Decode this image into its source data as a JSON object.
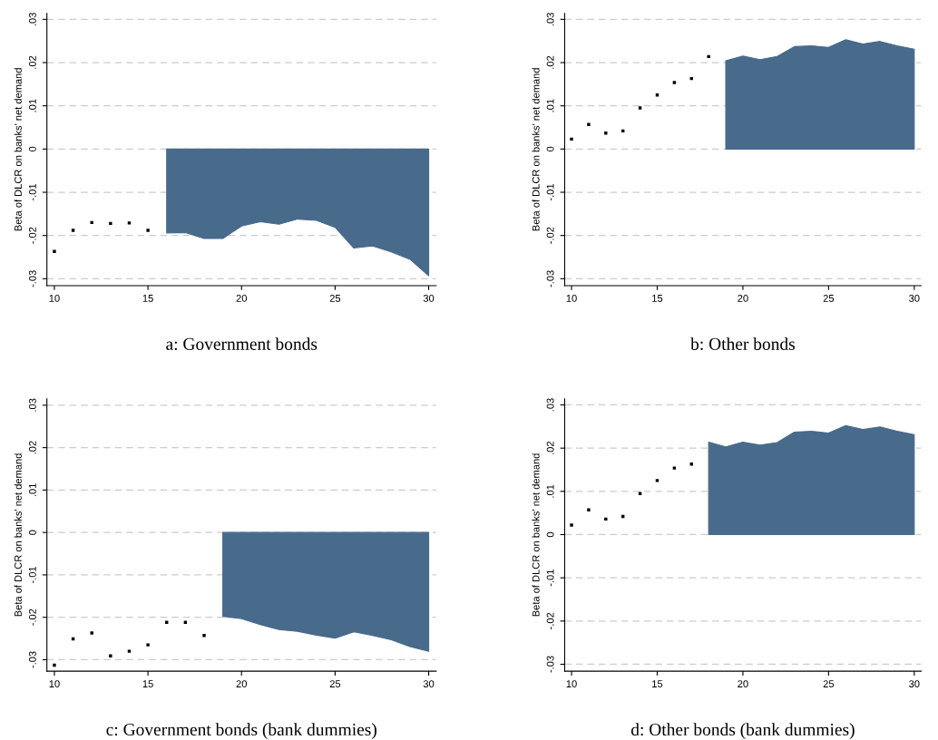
{
  "chart_data": [
    {
      "type": "scatter",
      "title": "a: Government bonds",
      "ylabel": "Beta of DLCR on banks' net demand",
      "xlim": [
        9.6,
        30.4
      ],
      "ylim": [
        -0.0316,
        0.0314
      ],
      "xticks": [
        10,
        15,
        20,
        25,
        30
      ],
      "yticks": [
        {
          "value": 0.03,
          "label": ".03"
        },
        {
          "value": 0.02,
          "label": ".02"
        },
        {
          "value": 0.01,
          "label": ".01"
        },
        0,
        {
          "value": -0.01,
          "label": "-.01"
        },
        {
          "value": -0.02,
          "label": "-.02"
        },
        {
          "value": -0.03,
          "label": "-.03"
        }
      ],
      "grid": "y",
      "series": [
        {
          "marker": "square",
          "color": "#000000",
          "x": [
            10,
            11,
            12,
            13,
            14,
            15
          ],
          "values": [
            -0.0237,
            -0.0188,
            -0.017,
            -0.0172,
            -0.0171,
            -0.0188
          ]
        },
        {
          "type": "area",
          "color": "#486a8b",
          "x": [
            16,
            17,
            18,
            19,
            20,
            21,
            22,
            23,
            24,
            25,
            26,
            27,
            28,
            29,
            30
          ],
          "values": [
            -0.0194,
            -0.0193,
            -0.0207,
            -0.0207,
            -0.0178,
            -0.0168,
            -0.0174,
            -0.0162,
            -0.0165,
            -0.0181,
            -0.0229,
            -0.0224,
            -0.0238,
            -0.0255,
            -0.0293
          ]
        }
      ]
    },
    {
      "type": "scatter",
      "title": "b: Other bonds",
      "ylabel": "Beta of DLCR on banks' net demand",
      "xlim": [
        9.6,
        30.4
      ],
      "ylim": [
        -0.0316,
        0.0314
      ],
      "xticks": [
        10,
        15,
        20,
        25,
        30
      ],
      "yticks": [
        {
          "value": 0.03,
          "label": ".03"
        },
        {
          "value": 0.02,
          "label": ".02"
        },
        {
          "value": 0.01,
          "label": ".01"
        },
        0,
        {
          "value": -0.01,
          "label": "-.01"
        },
        {
          "value": -0.02,
          "label": "-.02"
        },
        {
          "value": -0.03,
          "label": "-.03"
        }
      ],
      "grid": "y",
      "series": [
        {
          "marker": "square",
          "color": "#000000",
          "x": [
            10,
            11,
            12,
            13,
            14,
            15,
            16,
            17,
            18
          ],
          "values": [
            0.0023,
            0.0057,
            0.0037,
            0.0042,
            0.0095,
            0.0125,
            0.0154,
            0.0163,
            0.0214
          ]
        },
        {
          "type": "area",
          "color": "#486a8b",
          "x": [
            19,
            20,
            21,
            22,
            23,
            24,
            25,
            26,
            27,
            28,
            29,
            30
          ],
          "values": [
            0.0204,
            0.0215,
            0.0207,
            0.0214,
            0.0237,
            0.0239,
            0.0235,
            0.0253,
            0.0243,
            0.0249,
            0.0239,
            0.0231
          ]
        }
      ]
    },
    {
      "type": "scatter",
      "title": "c: Government bonds (bank dummies)",
      "ylabel": "Beta of DLCR on banks' net demand",
      "xlim": [
        9.6,
        30.4
      ],
      "ylim": [
        -0.0327,
        0.0315
      ],
      "xticks": [
        10,
        15,
        20,
        25,
        30
      ],
      "yticks": [
        {
          "value": 0.03,
          "label": ".03"
        },
        {
          "value": 0.02,
          "label": ".02"
        },
        {
          "value": 0.01,
          "label": ".01"
        },
        0,
        {
          "value": -0.01,
          "label": "-.01"
        },
        {
          "value": -0.02,
          "label": "-.02"
        },
        {
          "value": -0.03,
          "label": "-.03"
        }
      ],
      "grid": "y",
      "series": [
        {
          "marker": "square",
          "color": "#000000",
          "x": [
            10,
            11,
            12,
            13,
            14,
            15,
            16,
            17,
            18
          ],
          "values": [
            -0.0313,
            -0.0251,
            -0.0237,
            -0.0291,
            -0.028,
            -0.0265,
            -0.0212,
            -0.0212,
            -0.0243
          ]
        },
        {
          "type": "area",
          "color": "#486a8b",
          "x": [
            19,
            20,
            21,
            22,
            23,
            24,
            25,
            26,
            27,
            28,
            29,
            30
          ],
          "values": [
            -0.0198,
            -0.0203,
            -0.0217,
            -0.0229,
            -0.0233,
            -0.0242,
            -0.0249,
            -0.0234,
            -0.0243,
            -0.0253,
            -0.0269,
            -0.028
          ]
        }
      ]
    },
    {
      "type": "scatter",
      "title": "d: Other bonds (bank dummies)",
      "ylabel": "Beta of DLCR on banks' net demand",
      "xlim": [
        9.6,
        30.4
      ],
      "ylim": [
        -0.0316,
        0.0314
      ],
      "xticks": [
        10,
        15,
        20,
        25,
        30
      ],
      "yticks": [
        {
          "value": 0.03,
          "label": ".03"
        },
        {
          "value": 0.02,
          "label": ".02"
        },
        {
          "value": 0.01,
          "label": ".01"
        },
        0,
        {
          "value": -0.01,
          "label": "-.01"
        },
        {
          "value": -0.02,
          "label": "-.02"
        },
        {
          "value": -0.03,
          "label": "-.03"
        }
      ],
      "grid": "y",
      "series": [
        {
          "marker": "square",
          "color": "#000000",
          "x": [
            10,
            11,
            12,
            13,
            14,
            15,
            16,
            17
          ],
          "values": [
            0.0022,
            0.0057,
            0.0036,
            0.0042,
            0.0095,
            0.0125,
            0.0154,
            0.0163
          ]
        },
        {
          "type": "area",
          "color": "#486a8b",
          "x": [
            18,
            19,
            20,
            21,
            22,
            23,
            24,
            25,
            26,
            27,
            28,
            29,
            30
          ],
          "values": [
            0.0214,
            0.0203,
            0.0214,
            0.0207,
            0.0213,
            0.0237,
            0.0239,
            0.0235,
            0.0252,
            0.0243,
            0.0249,
            0.0239,
            0.0231
          ]
        }
      ]
    }
  ]
}
